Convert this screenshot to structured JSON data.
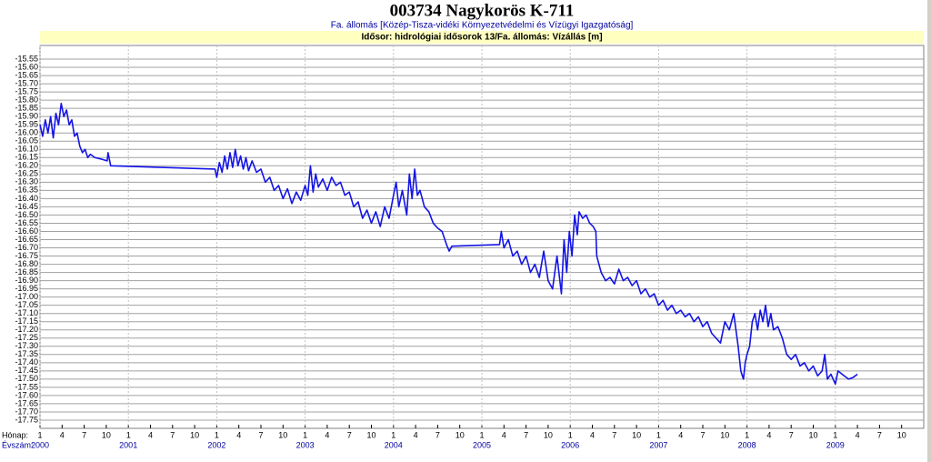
{
  "chart_data": {
    "type": "line",
    "title": "003734 Nagykorös K-711",
    "subtitle": "Fa. állomás [Közép-Tisza-vidéki Környezetvédelmi és Vízügyi Igazgatóság]",
    "series_label": "Idősor: hidrológiai idősorok 13/Fa. állomás: Vízállás [m]",
    "x_label_month": "Hónap:",
    "x_label_year": "Évszám:",
    "color": "#1414e6",
    "grid": true,
    "xlim": [
      2000,
      2010
    ],
    "ylim": [
      -17.8,
      -15.5
    ],
    "yticks": [
      -15.55,
      {
        "value": -15.6,
        "label": "-15.60"
      },
      -15.65,
      {
        "value": -15.7,
        "label": "-15.70"
      },
      -15.75,
      {
        "value": -15.8,
        "label": "-15.80"
      },
      -15.85,
      {
        "value": -15.9,
        "label": "-15.90"
      },
      -15.95,
      {
        "value": -16,
        "label": "-16.00"
      },
      -16.05,
      {
        "value": -16.1,
        "label": "-16.10"
      },
      -16.15,
      {
        "value": -16.2,
        "label": "-16.20"
      },
      -16.25,
      {
        "value": -16.3,
        "label": "-16.30"
      },
      -16.35,
      {
        "value": -16.4,
        "label": "-16.40"
      },
      -16.45,
      {
        "value": -16.5,
        "label": "-16.50"
      },
      -16.55,
      {
        "value": -16.6,
        "label": "-16.60"
      },
      -16.65,
      {
        "value": -16.7,
        "label": "-16.70"
      },
      -16.75,
      {
        "value": -16.8,
        "label": "-16.80"
      },
      -16.85,
      {
        "value": -16.9,
        "label": "-16.90"
      },
      -16.95,
      {
        "value": -17,
        "label": "-17.00"
      },
      -17.05,
      {
        "value": -17.1,
        "label": "-17.10"
      },
      -17.15,
      {
        "value": -17.2,
        "label": "-17.20"
      },
      -17.25,
      {
        "value": -17.3,
        "label": "-17.30"
      },
      -17.35,
      {
        "value": -17.4,
        "label": "-17.40"
      },
      -17.45,
      {
        "value": -17.5,
        "label": "-17.50"
      },
      -17.55,
      {
        "value": -17.6,
        "label": "-17.60"
      },
      -17.65,
      {
        "value": -17.7,
        "label": "-17.70"
      },
      -17.75
    ],
    "xticks": [
      {
        "value": 2000,
        "label": "1"
      },
      {
        "value": 2000.25,
        "label": "4"
      },
      {
        "value": 2000.5,
        "label": "7"
      },
      {
        "value": 2000.75,
        "label": "10"
      },
      {
        "value": 2001,
        "label": "1"
      },
      {
        "value": 2001.25,
        "label": "4"
      },
      {
        "value": 2001.5,
        "label": "7"
      },
      {
        "value": 2001.75,
        "label": "10"
      },
      {
        "value": 2002,
        "label": "1"
      },
      {
        "value": 2002.25,
        "label": "4"
      },
      {
        "value": 2002.5,
        "label": "7"
      },
      {
        "value": 2002.75,
        "label": "10"
      },
      {
        "value": 2003,
        "label": "1"
      },
      {
        "value": 2003.25,
        "label": "4"
      },
      {
        "value": 2003.5,
        "label": "7"
      },
      {
        "value": 2003.75,
        "label": "10"
      },
      {
        "value": 2004,
        "label": "1"
      },
      {
        "value": 2004.25,
        "label": "4"
      },
      {
        "value": 2004.5,
        "label": "7"
      },
      {
        "value": 2004.75,
        "label": "10"
      },
      {
        "value": 2005,
        "label": "1"
      },
      {
        "value": 2005.25,
        "label": "4"
      },
      {
        "value": 2005.5,
        "label": "7"
      },
      {
        "value": 2005.75,
        "label": "10"
      },
      {
        "value": 2006,
        "label": "1"
      },
      {
        "value": 2006.25,
        "label": "4"
      },
      {
        "value": 2006.5,
        "label": "7"
      },
      {
        "value": 2006.75,
        "label": "10"
      },
      {
        "value": 2007,
        "label": "1"
      },
      {
        "value": 2007.25,
        "label": "4"
      },
      {
        "value": 2007.5,
        "label": "7"
      },
      {
        "value": 2007.75,
        "label": "10"
      },
      {
        "value": 2008,
        "label": "1"
      },
      {
        "value": 2008.25,
        "label": "4"
      },
      {
        "value": 2008.5,
        "label": "7"
      },
      {
        "value": 2008.75,
        "label": "10"
      },
      {
        "value": 2009,
        "label": "1"
      },
      {
        "value": 2009.25,
        "label": "4"
      },
      {
        "value": 2009.5,
        "label": "7"
      },
      {
        "value": 2009.75,
        "label": "10"
      }
    ],
    "year_ticks": [
      2000,
      2001,
      2002,
      2003,
      2004,
      2005,
      2006,
      2007,
      2008,
      2009
    ],
    "x": [
      2000,
      2000.03,
      2000.06,
      2000.09,
      2000.12,
      2000.15,
      2000.18,
      2000.21,
      2000.24,
      2000.27,
      2000.3,
      2000.33,
      2000.36,
      2000.39,
      2000.42,
      2000.45,
      2000.48,
      2000.51,
      2000.54,
      2000.57,
      2000.62,
      2000.7,
      2000.76,
      2000.77,
      2000.8,
      2001.98,
      2002,
      2002.03,
      2002.06,
      2002.09,
      2002.12,
      2002.15,
      2002.18,
      2002.21,
      2002.24,
      2002.27,
      2002.3,
      2002.33,
      2002.36,
      2002.4,
      2002.45,
      2002.5,
      2002.55,
      2002.6,
      2002.65,
      2002.7,
      2002.75,
      2002.8,
      2002.85,
      2002.9,
      2002.95,
      2003,
      2003.03,
      2003.06,
      2003.09,
      2003.12,
      2003.15,
      2003.2,
      2003.25,
      2003.3,
      2003.35,
      2003.4,
      2003.45,
      2003.5,
      2003.55,
      2003.6,
      2003.65,
      2003.7,
      2003.75,
      2003.8,
      2003.85,
      2003.9,
      2003.95,
      2004,
      2004.03,
      2004.06,
      2004.1,
      2004.15,
      2004.18,
      2004.21,
      2004.24,
      2004.27,
      2004.3,
      2004.35,
      2004.4,
      2004.45,
      2004.5,
      2004.55,
      2004.6,
      2004.63,
      2004.66,
      2005.2,
      2005.22,
      2005.25,
      2005.3,
      2005.35,
      2005.4,
      2005.45,
      2005.5,
      2005.55,
      2005.6,
      2005.65,
      2005.7,
      2005.75,
      2005.8,
      2005.85,
      2005.9,
      2005.93,
      2005.96,
      2005.99,
      2006.02,
      2006.05,
      2006.08,
      2006.1,
      2006.14,
      2006.18,
      2006.22,
      2006.26,
      2006.29,
      2006.3,
      2006.35,
      2006.4,
      2006.45,
      2006.5,
      2006.55,
      2006.6,
      2006.65,
      2006.7,
      2006.75,
      2006.8,
      2006.85,
      2006.9,
      2006.95,
      2007,
      2007.05,
      2007.1,
      2007.15,
      2007.2,
      2007.25,
      2007.3,
      2007.35,
      2007.4,
      2007.45,
      2007.5,
      2007.55,
      2007.6,
      2007.65,
      2007.7,
      2007.75,
      2007.8,
      2007.85,
      2007.9,
      2007.93,
      2007.96,
      2007.98,
      2008,
      2008.03,
      2008.06,
      2008.09,
      2008.12,
      2008.15,
      2008.18,
      2008.21,
      2008.24,
      2008.27,
      2008.3,
      2008.35,
      2008.4,
      2008.45,
      2008.5,
      2008.55,
      2008.6,
      2008.65,
      2008.7,
      2008.75,
      2008.8,
      2008.85,
      2008.88,
      2008.91,
      2008.95,
      2009,
      2009.03,
      2009.1,
      2009.15,
      2009.2,
      2009.25
    ],
    "values": [
      -15.95,
      -16.02,
      -15.92,
      -16,
      -15.9,
      -16.03,
      -15.88,
      -15.95,
      -15.82,
      -15.9,
      -15.86,
      -15.95,
      -15.92,
      -16.02,
      -16,
      -16.08,
      -16.12,
      -16.1,
      -16.15,
      -16.13,
      -16.15,
      -16.16,
      -16.17,
      -16.12,
      -16.2,
      -16.22,
      -16.27,
      -16.18,
      -16.24,
      -16.14,
      -16.22,
      -16.12,
      -16.21,
      -16.1,
      -16.2,
      -16.14,
      -16.22,
      -16.15,
      -16.23,
      -16.17,
      -16.24,
      -16.22,
      -16.3,
      -16.27,
      -16.35,
      -16.32,
      -16.4,
      -16.34,
      -16.43,
      -16.36,
      -16.41,
      -16.32,
      -16.38,
      -16.2,
      -16.36,
      -16.25,
      -16.33,
      -16.28,
      -16.35,
      -16.27,
      -16.32,
      -16.3,
      -16.38,
      -16.36,
      -16.45,
      -16.42,
      -16.52,
      -16.47,
      -16.55,
      -16.48,
      -16.57,
      -16.45,
      -16.52,
      -16.38,
      -16.3,
      -16.45,
      -16.35,
      -16.5,
      -16.25,
      -16.4,
      -16.22,
      -16.38,
      -16.35,
      -16.45,
      -16.48,
      -16.55,
      -16.58,
      -16.6,
      -16.68,
      -16.72,
      -16.69,
      -16.68,
      -16.6,
      -16.7,
      -16.65,
      -16.75,
      -16.72,
      -16.8,
      -16.75,
      -16.85,
      -16.8,
      -16.88,
      -16.72,
      -16.9,
      -16.95,
      -16.75,
      -16.98,
      -16.65,
      -16.85,
      -16.6,
      -16.75,
      -16.5,
      -16.62,
      -16.48,
      -16.52,
      -16.5,
      -16.55,
      -16.57,
      -16.6,
      -16.75,
      -16.85,
      -16.9,
      -16.88,
      -16.92,
      -16.83,
      -16.9,
      -16.88,
      -16.93,
      -16.9,
      -16.98,
      -16.95,
      -17,
      -16.98,
      -17.05,
      -17.02,
      -17.08,
      -17.05,
      -17.1,
      -17.08,
      -17.12,
      -17.1,
      -17.15,
      -17.12,
      -17.18,
      -17.15,
      -17.22,
      -17.25,
      -17.28,
      -17.15,
      -17.2,
      -17.1,
      -17.3,
      -17.45,
      -17.5,
      -17.4,
      -17.35,
      -17.3,
      -17.15,
      -17.1,
      -17.2,
      -17.08,
      -17.15,
      -17.05,
      -17.18,
      -17.1,
      -17.2,
      -17.18,
      -17.25,
      -17.35,
      -17.38,
      -17.35,
      -17.42,
      -17.4,
      -17.45,
      -17.42,
      -17.48,
      -17.45,
      -17.35,
      -17.5,
      -17.47,
      -17.53,
      -17.45,
      -17.48,
      -17.5,
      -17.49,
      -17.47
    ]
  }
}
